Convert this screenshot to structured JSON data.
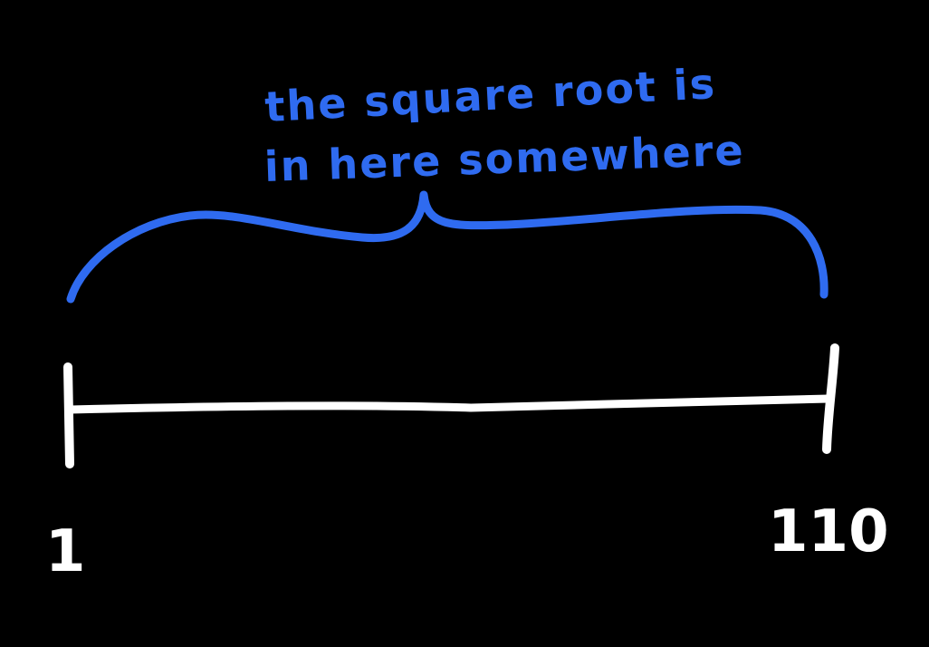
{
  "annotation": {
    "line1": "the square root is",
    "line2": "in here somewhere"
  },
  "number_line": {
    "start_label": "1",
    "end_label": "110"
  },
  "colors": {
    "background": "#000000",
    "line": "#ffffff",
    "annotation": "#2f6bf0"
  }
}
